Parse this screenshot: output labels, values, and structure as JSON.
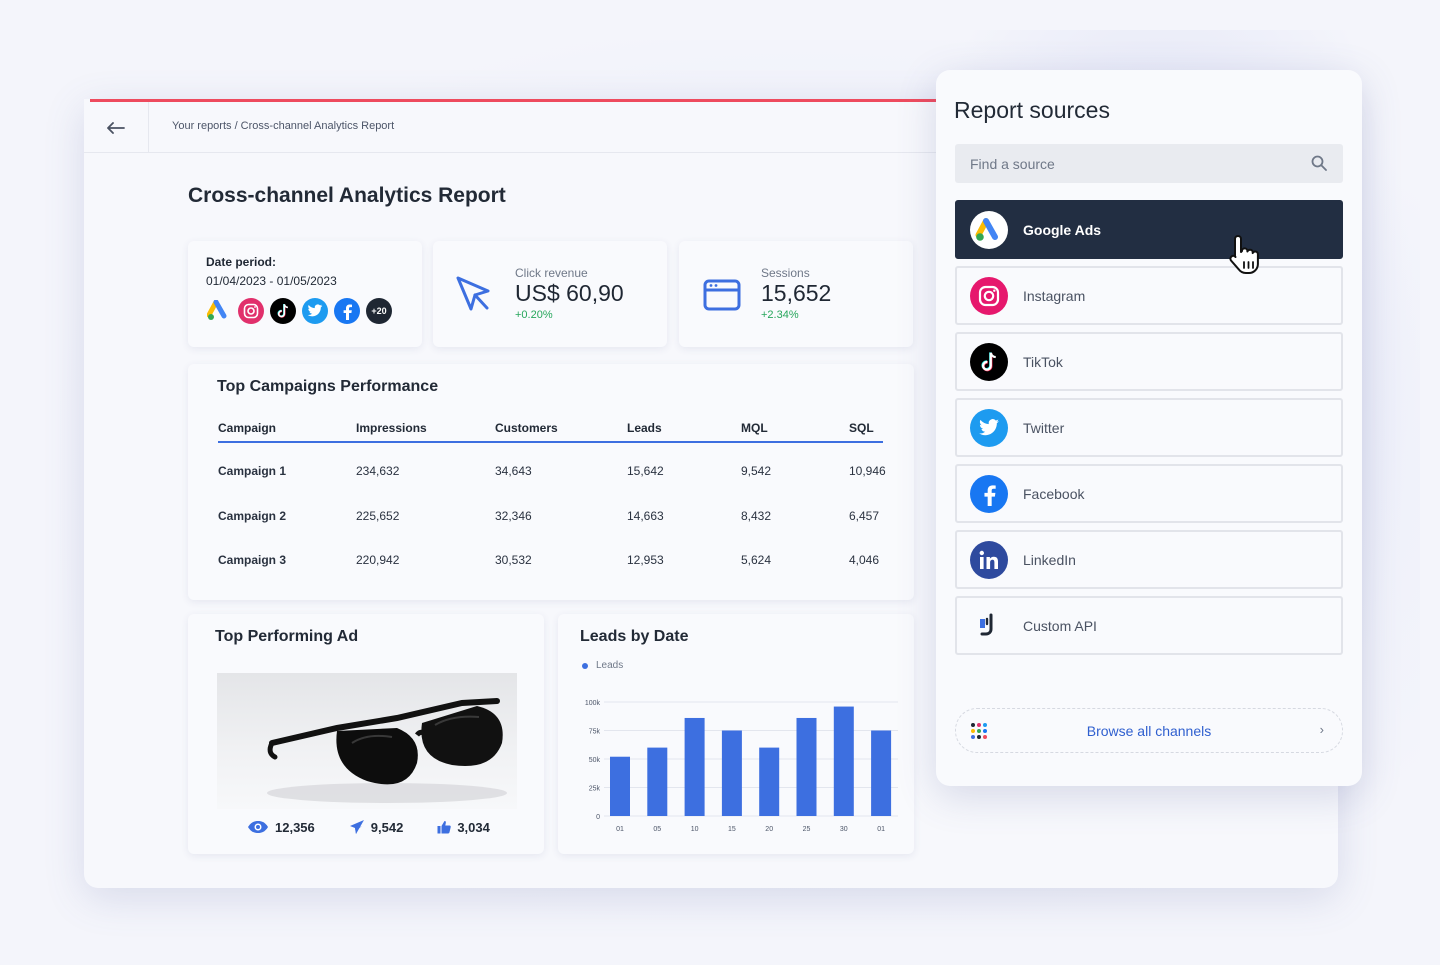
{
  "report": {
    "breadcrumb": "Your reports / Cross-channel Analytics Report",
    "title": "Cross-channel Analytics Report",
    "back_icon": "arrow-left-icon",
    "date_card": {
      "label": "Date period:",
      "value": "01/04/2023 - 01/05/2023",
      "channel_icons": [
        "google-ads-icon",
        "instagram-icon",
        "tiktok-icon",
        "twitter-icon",
        "facebook-icon"
      ],
      "more_count": "+20"
    },
    "metrics": [
      {
        "label": "Click revenue",
        "value": "US$ 60,90",
        "delta": "+0.20%",
        "icon": "cursor-arrow-icon"
      },
      {
        "label": "Sessions",
        "value": "15,652",
        "delta": "+2.34%",
        "icon": "browser-window-icon"
      }
    ],
    "campaigns": {
      "title": "Top Campaigns Performance",
      "columns": [
        "Campaign",
        "Impressions",
        "Customers",
        "Leads",
        "MQL",
        "SQL"
      ],
      "rows": [
        [
          "Campaign 1",
          "234,632",
          "34,643",
          "15,642",
          "9,542",
          "10,946"
        ],
        [
          "Campaign 2",
          "225,652",
          "32,346",
          "14,663",
          "8,432",
          "6,457"
        ],
        [
          "Campaign 3",
          "220,942",
          "30,532",
          "12,953",
          "5,624",
          "4,046"
        ]
      ]
    },
    "top_ad": {
      "title": "Top Performing Ad",
      "image": "sunglasses-photo",
      "stats": [
        {
          "icon": "eye-icon",
          "value": "12,356"
        },
        {
          "icon": "send-arrow-icon",
          "value": "9,542"
        },
        {
          "icon": "thumbs-up-icon",
          "value": "3,034"
        }
      ]
    },
    "leads_chart": {
      "title": "Leads by Date"
    }
  },
  "chart_data": {
    "type": "bar",
    "title": "Leads by Date",
    "legend": [
      "Leads"
    ],
    "categories": [
      "01",
      "05",
      "10",
      "15",
      "20",
      "25",
      "30",
      "01"
    ],
    "series": [
      {
        "name": "Leads",
        "values": [
          52000,
          60000,
          86000,
          75000,
          60000,
          86000,
          96000,
          75000
        ]
      }
    ],
    "y_ticks": [
      "0",
      "25k",
      "50k",
      "75k",
      "100k"
    ],
    "ylim": [
      0,
      100000
    ],
    "color": "#3d6fe0",
    "grid": true
  },
  "sources": {
    "title": "Report sources",
    "search_placeholder": "Find a source",
    "items": [
      {
        "label": "Google Ads",
        "icon": "google-ads-icon",
        "active": true
      },
      {
        "label": "Instagram",
        "icon": "instagram-icon",
        "active": false
      },
      {
        "label": "TikTok",
        "icon": "tiktok-icon",
        "active": false
      },
      {
        "label": "Twitter",
        "icon": "twitter-icon",
        "active": false
      },
      {
        "label": "Facebook",
        "icon": "facebook-icon",
        "active": false
      },
      {
        "label": "LinkedIn",
        "icon": "linkedin-icon",
        "active": false
      },
      {
        "label": "Custom API",
        "icon": "custom-api-plug-icon",
        "active": false
      }
    ],
    "browse_label": "Browse all channels"
  },
  "colors": {
    "accent": "#3d6fe0",
    "positive": "#26a65b",
    "active_item": "#222e42",
    "top_line": "#ee4b5e"
  }
}
